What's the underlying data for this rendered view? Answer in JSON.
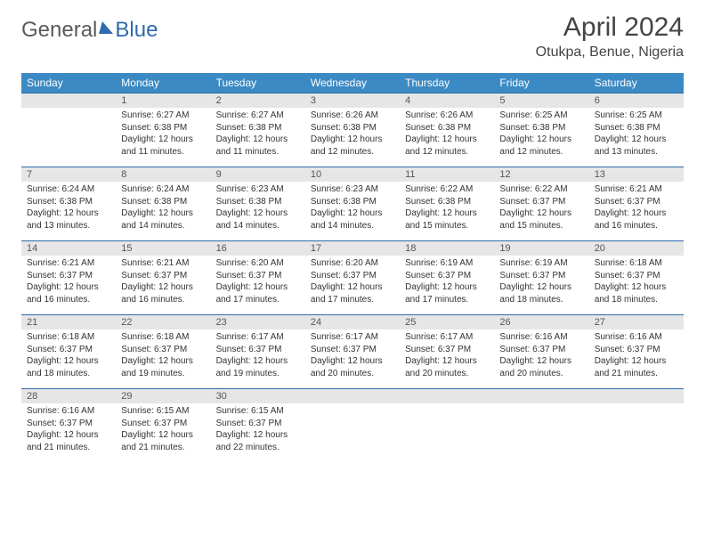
{
  "logo": {
    "text1": "General",
    "text2": "Blue"
  },
  "title": "April 2024",
  "location": "Otukpa, Benue, Nigeria",
  "colors": {
    "header_bg": "#3b8ac4",
    "header_text": "#ffffff",
    "datebar_bg": "#e6e6e6",
    "datebar_text": "#555555",
    "rule": "#2f6aab",
    "body_text": "#333333",
    "title_text": "#444444",
    "logo_gray": "#5a5a5a",
    "logo_blue": "#2f6aab"
  },
  "day_headers": [
    "Sunday",
    "Monday",
    "Tuesday",
    "Wednesday",
    "Thursday",
    "Friday",
    "Saturday"
  ],
  "weeks": [
    [
      {
        "date": "",
        "sunrise": "",
        "sunset": "",
        "daylight": ""
      },
      {
        "date": "1",
        "sunrise": "Sunrise: 6:27 AM",
        "sunset": "Sunset: 6:38 PM",
        "daylight": "Daylight: 12 hours and 11 minutes."
      },
      {
        "date": "2",
        "sunrise": "Sunrise: 6:27 AM",
        "sunset": "Sunset: 6:38 PM",
        "daylight": "Daylight: 12 hours and 11 minutes."
      },
      {
        "date": "3",
        "sunrise": "Sunrise: 6:26 AM",
        "sunset": "Sunset: 6:38 PM",
        "daylight": "Daylight: 12 hours and 12 minutes."
      },
      {
        "date": "4",
        "sunrise": "Sunrise: 6:26 AM",
        "sunset": "Sunset: 6:38 PM",
        "daylight": "Daylight: 12 hours and 12 minutes."
      },
      {
        "date": "5",
        "sunrise": "Sunrise: 6:25 AM",
        "sunset": "Sunset: 6:38 PM",
        "daylight": "Daylight: 12 hours and 12 minutes."
      },
      {
        "date": "6",
        "sunrise": "Sunrise: 6:25 AM",
        "sunset": "Sunset: 6:38 PM",
        "daylight": "Daylight: 12 hours and 13 minutes."
      }
    ],
    [
      {
        "date": "7",
        "sunrise": "Sunrise: 6:24 AM",
        "sunset": "Sunset: 6:38 PM",
        "daylight": "Daylight: 12 hours and 13 minutes."
      },
      {
        "date": "8",
        "sunrise": "Sunrise: 6:24 AM",
        "sunset": "Sunset: 6:38 PM",
        "daylight": "Daylight: 12 hours and 14 minutes."
      },
      {
        "date": "9",
        "sunrise": "Sunrise: 6:23 AM",
        "sunset": "Sunset: 6:38 PM",
        "daylight": "Daylight: 12 hours and 14 minutes."
      },
      {
        "date": "10",
        "sunrise": "Sunrise: 6:23 AM",
        "sunset": "Sunset: 6:38 PM",
        "daylight": "Daylight: 12 hours and 14 minutes."
      },
      {
        "date": "11",
        "sunrise": "Sunrise: 6:22 AM",
        "sunset": "Sunset: 6:38 PM",
        "daylight": "Daylight: 12 hours and 15 minutes."
      },
      {
        "date": "12",
        "sunrise": "Sunrise: 6:22 AM",
        "sunset": "Sunset: 6:37 PM",
        "daylight": "Daylight: 12 hours and 15 minutes."
      },
      {
        "date": "13",
        "sunrise": "Sunrise: 6:21 AM",
        "sunset": "Sunset: 6:37 PM",
        "daylight": "Daylight: 12 hours and 16 minutes."
      }
    ],
    [
      {
        "date": "14",
        "sunrise": "Sunrise: 6:21 AM",
        "sunset": "Sunset: 6:37 PM",
        "daylight": "Daylight: 12 hours and 16 minutes."
      },
      {
        "date": "15",
        "sunrise": "Sunrise: 6:21 AM",
        "sunset": "Sunset: 6:37 PM",
        "daylight": "Daylight: 12 hours and 16 minutes."
      },
      {
        "date": "16",
        "sunrise": "Sunrise: 6:20 AM",
        "sunset": "Sunset: 6:37 PM",
        "daylight": "Daylight: 12 hours and 17 minutes."
      },
      {
        "date": "17",
        "sunrise": "Sunrise: 6:20 AM",
        "sunset": "Sunset: 6:37 PM",
        "daylight": "Daylight: 12 hours and 17 minutes."
      },
      {
        "date": "18",
        "sunrise": "Sunrise: 6:19 AM",
        "sunset": "Sunset: 6:37 PM",
        "daylight": "Daylight: 12 hours and 17 minutes."
      },
      {
        "date": "19",
        "sunrise": "Sunrise: 6:19 AM",
        "sunset": "Sunset: 6:37 PM",
        "daylight": "Daylight: 12 hours and 18 minutes."
      },
      {
        "date": "20",
        "sunrise": "Sunrise: 6:18 AM",
        "sunset": "Sunset: 6:37 PM",
        "daylight": "Daylight: 12 hours and 18 minutes."
      }
    ],
    [
      {
        "date": "21",
        "sunrise": "Sunrise: 6:18 AM",
        "sunset": "Sunset: 6:37 PM",
        "daylight": "Daylight: 12 hours and 18 minutes."
      },
      {
        "date": "22",
        "sunrise": "Sunrise: 6:18 AM",
        "sunset": "Sunset: 6:37 PM",
        "daylight": "Daylight: 12 hours and 19 minutes."
      },
      {
        "date": "23",
        "sunrise": "Sunrise: 6:17 AM",
        "sunset": "Sunset: 6:37 PM",
        "daylight": "Daylight: 12 hours and 19 minutes."
      },
      {
        "date": "24",
        "sunrise": "Sunrise: 6:17 AM",
        "sunset": "Sunset: 6:37 PM",
        "daylight": "Daylight: 12 hours and 20 minutes."
      },
      {
        "date": "25",
        "sunrise": "Sunrise: 6:17 AM",
        "sunset": "Sunset: 6:37 PM",
        "daylight": "Daylight: 12 hours and 20 minutes."
      },
      {
        "date": "26",
        "sunrise": "Sunrise: 6:16 AM",
        "sunset": "Sunset: 6:37 PM",
        "daylight": "Daylight: 12 hours and 20 minutes."
      },
      {
        "date": "27",
        "sunrise": "Sunrise: 6:16 AM",
        "sunset": "Sunset: 6:37 PM",
        "daylight": "Daylight: 12 hours and 21 minutes."
      }
    ],
    [
      {
        "date": "28",
        "sunrise": "Sunrise: 6:16 AM",
        "sunset": "Sunset: 6:37 PM",
        "daylight": "Daylight: 12 hours and 21 minutes."
      },
      {
        "date": "29",
        "sunrise": "Sunrise: 6:15 AM",
        "sunset": "Sunset: 6:37 PM",
        "daylight": "Daylight: 12 hours and 21 minutes."
      },
      {
        "date": "30",
        "sunrise": "Sunrise: 6:15 AM",
        "sunset": "Sunset: 6:37 PM",
        "daylight": "Daylight: 12 hours and 22 minutes."
      },
      {
        "date": "",
        "sunrise": "",
        "sunset": "",
        "daylight": ""
      },
      {
        "date": "",
        "sunrise": "",
        "sunset": "",
        "daylight": ""
      },
      {
        "date": "",
        "sunrise": "",
        "sunset": "",
        "daylight": ""
      },
      {
        "date": "",
        "sunrise": "",
        "sunset": "",
        "daylight": ""
      }
    ]
  ]
}
